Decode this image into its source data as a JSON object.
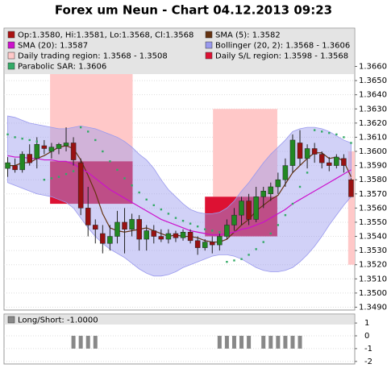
{
  "chart_data": {
    "type": "candlestick",
    "title": "Forex um Neun - Chart 04.12.2013 09:23",
    "ohlc_label": "Op:1.3580, Hi:1.3581, Lo:1.3568, Cl:1.3568",
    "ohlc_color": "#aa1111",
    "up_color": "#228822",
    "down_color": "#991111",
    "open": [
      1.3588,
      1.359,
      1.3587,
      1.3598,
      1.3595,
      1.3604,
      1.36,
      1.3602,
      1.3604,
      1.3606,
      1.3592,
      1.356,
      1.3548,
      1.3542,
      1.3535,
      1.354,
      1.355,
      1.3545,
      1.3552,
      1.3538,
      1.3544,
      1.354,
      1.3538,
      1.3542,
      1.3539,
      1.3543,
      1.3537,
      1.3532,
      1.3536,
      1.3534,
      1.354,
      1.3548,
      1.3555,
      1.3565,
      1.3552,
      1.3568,
      1.357,
      1.3575,
      1.358,
      1.359,
      1.3606,
      1.3595,
      1.3602,
      1.3598,
      1.3592,
      1.359,
      1.3595,
      1.358
    ],
    "high": [
      1.3596,
      1.3595,
      1.36,
      1.3605,
      1.361,
      1.3608,
      1.3606,
      1.3606,
      1.3617,
      1.361,
      1.3595,
      1.3575,
      1.3552,
      1.3548,
      1.3548,
      1.3558,
      1.356,
      1.3556,
      1.3555,
      1.3548,
      1.3548,
      1.3545,
      1.3545,
      1.3544,
      1.3545,
      1.3545,
      1.354,
      1.3538,
      1.354,
      1.3542,
      1.3552,
      1.356,
      1.3568,
      1.357,
      1.3575,
      1.3575,
      1.3578,
      1.3585,
      1.3595,
      1.3612,
      1.3615,
      1.3605,
      1.3606,
      1.36,
      1.3596,
      1.3598,
      1.3598,
      1.3581
    ],
    "low": [
      1.3582,
      1.3585,
      1.3585,
      1.359,
      1.3588,
      1.3598,
      1.3595,
      1.3598,
      1.36,
      1.359,
      1.3555,
      1.354,
      1.3535,
      1.3528,
      1.353,
      1.3535,
      1.3528,
      1.354,
      1.353,
      1.353,
      1.3535,
      1.3536,
      1.3535,
      1.3536,
      1.3537,
      1.3535,
      1.3527,
      1.353,
      1.3528,
      1.353,
      1.3538,
      1.3544,
      1.3548,
      1.3548,
      1.355,
      1.356,
      1.3565,
      1.357,
      1.3575,
      1.3585,
      1.359,
      1.3588,
      1.3592,
      1.3588,
      1.3586,
      1.3588,
      1.3585,
      1.3568
    ],
    "close": [
      1.3592,
      1.3587,
      1.3598,
      1.3592,
      1.3605,
      1.3602,
      1.3603,
      1.3605,
      1.3606,
      1.3594,
      1.356,
      1.3548,
      1.3545,
      1.3535,
      1.354,
      1.355,
      1.3545,
      1.3552,
      1.3538,
      1.3544,
      1.354,
      1.3538,
      1.3542,
      1.3539,
      1.3543,
      1.3537,
      1.3532,
      1.3536,
      1.3534,
      1.354,
      1.3548,
      1.3555,
      1.3565,
      1.3552,
      1.3568,
      1.3572,
      1.3575,
      1.358,
      1.359,
      1.3608,
      1.3595,
      1.3602,
      1.3598,
      1.3592,
      1.359,
      1.3596,
      1.359,
      1.3568
    ],
    "series": [
      {
        "name": "SMA (5): 1.3582",
        "color": "#663311",
        "values": [
          1.359,
          1.359,
          1.3592,
          1.3592,
          1.3595,
          1.3597,
          1.36,
          1.3603,
          1.3604,
          1.3602,
          1.3594,
          1.3583,
          1.3571,
          1.3556,
          1.3546,
          1.3544,
          1.3543,
          1.3544,
          1.3545,
          1.3546,
          1.3544,
          1.3542,
          1.354,
          1.3541,
          1.354,
          1.354,
          1.3539,
          1.3537,
          1.3536,
          1.3536,
          1.3538,
          1.3543,
          1.3548,
          1.3552,
          1.3558,
          1.3562,
          1.3566,
          1.3569,
          1.3577,
          1.3585,
          1.359,
          1.3595,
          1.3599,
          1.3599,
          1.3595,
          1.3596,
          1.3593,
          1.3582
        ]
      },
      {
        "name": "SMA (20): 1.3587",
        "color": "#cc11cc",
        "values": [
          1.3597,
          1.3596,
          1.3596,
          1.3595,
          1.3595,
          1.3594,
          1.3594,
          1.3593,
          1.3593,
          1.3591,
          1.3588,
          1.3585,
          1.3581,
          1.3577,
          1.3573,
          1.357,
          1.3567,
          1.3564,
          1.3561,
          1.3558,
          1.3555,
          1.3552,
          1.355,
          1.3548,
          1.3546,
          1.3544,
          1.3543,
          1.3542,
          1.3541,
          1.3541,
          1.3542,
          1.3543,
          1.3545,
          1.3546,
          1.3548,
          1.355,
          1.3553,
          1.3556,
          1.3559,
          1.3563,
          1.3566,
          1.3569,
          1.3572,
          1.3575,
          1.3578,
          1.3581,
          1.3584,
          1.3587
        ]
      }
    ],
    "bands": {
      "name": "Bollinger (20, 2): 1.3568 - 1.3606",
      "color": "#9999ee",
      "upper": [
        1.3625,
        1.3624,
        1.3622,
        1.362,
        1.3619,
        1.3618,
        1.3617,
        1.3616,
        1.3616,
        1.3617,
        1.3618,
        1.3617,
        1.3616,
        1.3614,
        1.3612,
        1.361,
        1.3607,
        1.3603,
        1.3598,
        1.3594,
        1.3588,
        1.358,
        1.3573,
        1.3568,
        1.3563,
        1.3559,
        1.3557,
        1.3556,
        1.3556,
        1.3557,
        1.356,
        1.3565,
        1.3572,
        1.3578,
        1.3585,
        1.3592,
        1.3598,
        1.3603,
        1.3608,
        1.3614,
        1.3616,
        1.3617,
        1.3617,
        1.3616,
        1.3614,
        1.3611,
        1.3608,
        1.3606
      ],
      "lower": [
        1.3578,
        1.3576,
        1.3574,
        1.3572,
        1.357,
        1.3569,
        1.3568,
        1.3566,
        1.3564,
        1.356,
        1.3553,
        1.3546,
        1.354,
        1.3535,
        1.3531,
        1.3528,
        1.3525,
        1.3521,
        1.3517,
        1.3514,
        1.3512,
        1.3512,
        1.3513,
        1.3515,
        1.3518,
        1.352,
        1.3522,
        1.3524,
        1.3526,
        1.3527,
        1.3527,
        1.3526,
        1.3524,
        1.3521,
        1.3518,
        1.3516,
        1.3515,
        1.3515,
        1.3516,
        1.3518,
        1.3522,
        1.3527,
        1.3533,
        1.354,
        1.3548,
        1.3555,
        1.3562,
        1.3568
      ]
    },
    "regions": [
      {
        "name": "Daily trading region: 1.3568 - 1.3508",
        "color": "#ffc8c8",
        "items": [
          {
            "x0": 5.8,
            "x1": 17.1,
            "high": 1.366,
            "low": 1.3593
          },
          {
            "x0": 28.1,
            "x1": 36.9,
            "high": 1.363,
            "low": 1.3568
          },
          {
            "x0": 46.6,
            "x1": 47.5,
            "high": 1.36,
            "low": 1.352
          }
        ]
      },
      {
        "name": "Daily S/L region: 1.3598 - 1.3568",
        "color": "#dd1133",
        "items": [
          {
            "x0": 5.8,
            "x1": 17.1,
            "high": 1.3593,
            "low": 1.3563
          },
          {
            "x0": 27.0,
            "x1": 36.9,
            "high": 1.3568,
            "low": 1.354
          }
        ]
      }
    ],
    "sar": {
      "name": "Parabolic SAR: 1.3606",
      "color": "#33aa66",
      "values": [
        1.3612,
        1.361,
        1.3609,
        1.3608,
        1.3607,
        1.358,
        1.3581,
        1.3582,
        1.3584,
        1.3586,
        1.3617,
        1.3614,
        1.3608,
        1.36,
        1.3593,
        1.3587,
        1.3581,
        1.3576,
        1.3571,
        1.3566,
        1.3562,
        1.3559,
        1.3556,
        1.3553,
        1.3551,
        1.3549,
        1.3547,
        1.3545,
        1.3544,
        1.3543,
        1.3522,
        1.3523,
        1.3524,
        1.3527,
        1.3531,
        1.3536,
        1.3542,
        1.3548,
        1.3555,
        1.3563,
        1.3575,
        1.3585,
        1.3615,
        1.3614,
        1.3613,
        1.3612,
        1.361,
        1.3606
      ]
    },
    "ylim": [
      1.3488,
      1.3687
    ],
    "yticks": [
      {
        "value": 1.349,
        "label": "1.3490"
      },
      {
        "value": 1.35,
        "label": "1.3500"
      },
      {
        "value": 1.351,
        "label": "1.3510"
      },
      {
        "value": 1.352,
        "label": "1.3520"
      },
      {
        "value": 1.353,
        "label": "1.3530"
      },
      {
        "value": 1.354,
        "label": "1.3540"
      },
      {
        "value": 1.355,
        "label": "1.3550"
      },
      {
        "value": 1.356,
        "label": "1.3560"
      },
      {
        "value": 1.357,
        "label": "1.3570"
      },
      {
        "value": 1.358,
        "label": "1.3580"
      },
      {
        "value": 1.359,
        "label": "1.3590"
      },
      {
        "value": 1.36,
        "label": "1.3600"
      },
      {
        "value": 1.361,
        "label": "1.3610"
      },
      {
        "value": 1.362,
        "label": "1.3620"
      },
      {
        "value": 1.363,
        "label": "1.3630"
      },
      {
        "value": 1.364,
        "label": "1.3640"
      },
      {
        "value": 1.365,
        "label": "1.3650"
      },
      {
        "value": 1.366,
        "label": "1.3660"
      }
    ],
    "grid": true,
    "long_short": {
      "name": "Long/Short: -1.0000",
      "color": "#888888",
      "values": [
        null,
        null,
        null,
        null,
        null,
        null,
        null,
        null,
        null,
        -1,
        -1,
        -1,
        -1,
        null,
        null,
        null,
        null,
        null,
        null,
        null,
        null,
        null,
        null,
        null,
        null,
        null,
        null,
        null,
        null,
        -1,
        -1,
        -1,
        -1,
        -1,
        null,
        -1,
        -1,
        -1,
        -1,
        -1,
        -1,
        null,
        null,
        null,
        null,
        null,
        null,
        null
      ],
      "ylim": [
        -2.2,
        1.7
      ],
      "yticks": [
        1,
        0,
        -1,
        -2
      ]
    }
  }
}
